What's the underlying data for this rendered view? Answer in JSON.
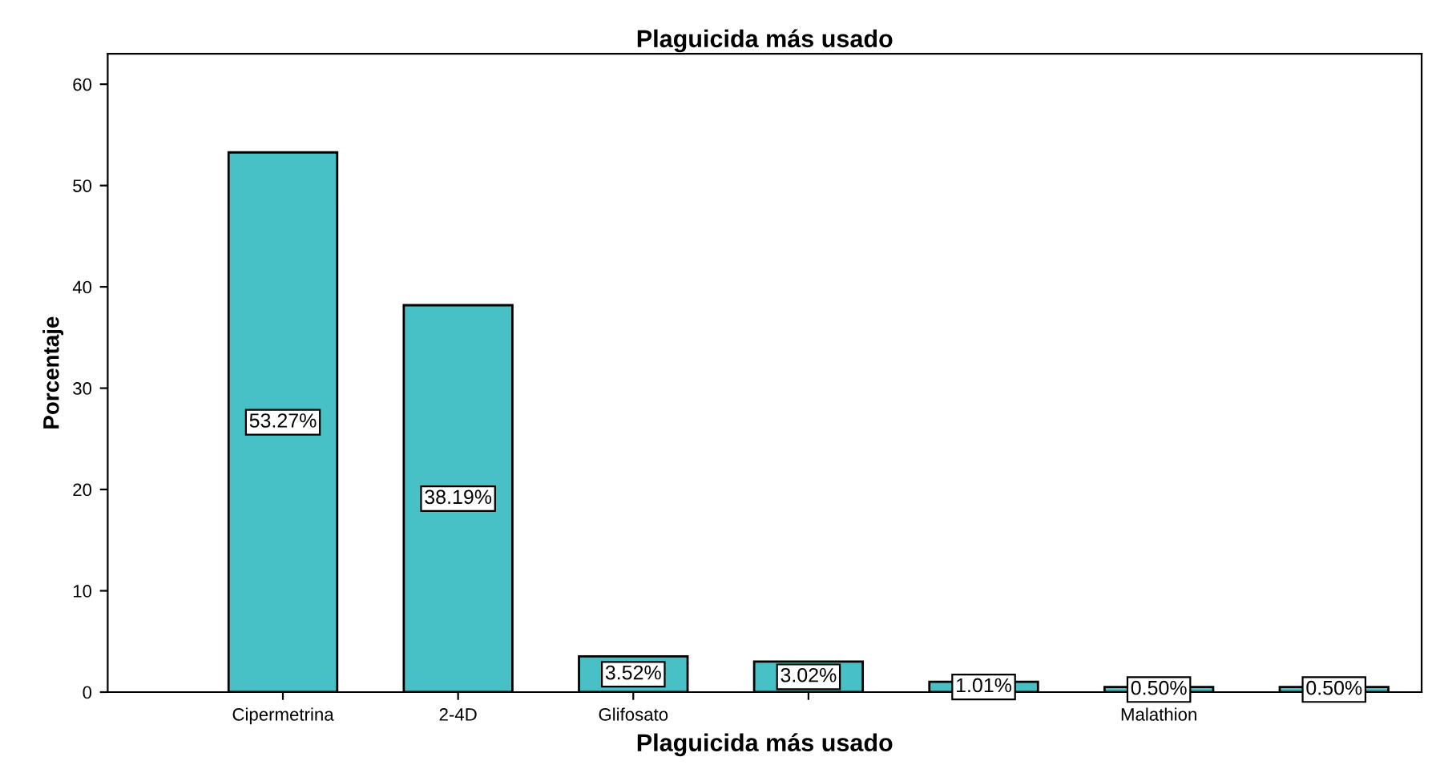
{
  "chart_data": {
    "type": "bar",
    "title": "Plaguicida más usado",
    "xlabel": "Plaguicida más usado",
    "ylabel": "Porcentaje",
    "categories": [
      "Cipermetrina",
      "2-4D",
      "Glifosato",
      null,
      null,
      "Malathion",
      null
    ],
    "values": [
      53.27,
      38.19,
      3.52,
      3.02,
      1.01,
      0.5,
      0.5
    ],
    "value_labels": [
      "53.27%",
      "38.19%",
      "3.52%",
      "3.02%",
      "1.01%",
      "0.50%",
      "0.50%"
    ],
    "color": "#47c1c5",
    "ylim": [
      0,
      63
    ],
    "yticks": [
      0,
      10,
      20,
      30,
      40,
      50,
      60
    ],
    "grid": false,
    "legend": false
  }
}
